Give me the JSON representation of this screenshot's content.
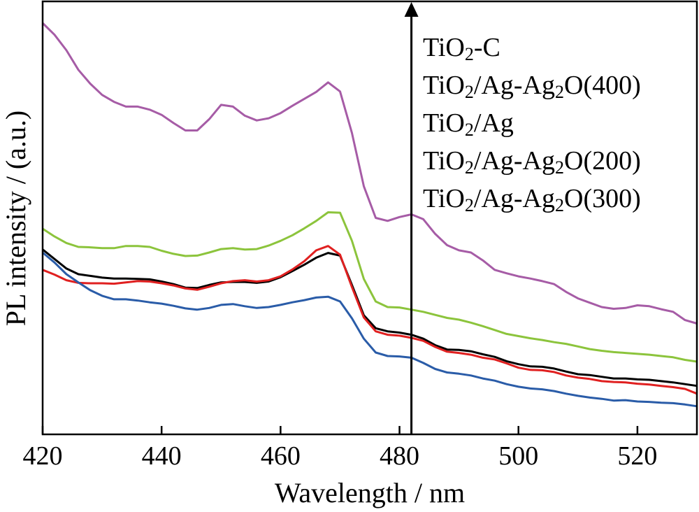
{
  "chart_data": {
    "type": "line",
    "xlabel": "Wavelength / nm",
    "ylabel": "PL intensity / (a.u.)",
    "xlim": [
      420,
      530
    ],
    "ylim": [
      0,
      100
    ],
    "x_ticks": [
      "420",
      "440",
      "460",
      "480",
      "500",
      "520"
    ],
    "y_ticks_shown": false,
    "grid": false,
    "arrow": {
      "x": 482,
      "direction": "up"
    },
    "legend_position": "top-right",
    "legend": [
      {
        "name": "TiO",
        "sub": "2",
        "rest": "-C"
      },
      {
        "name": "TiO",
        "sub": "2",
        "rest": "/Ag-Ag",
        "sub2": "2",
        "rest2": "O(400)"
      },
      {
        "name": "TiO",
        "sub": "2",
        "rest": "/Ag"
      },
      {
        "name": "TiO",
        "sub": "2",
        "rest": "/Ag-Ag",
        "sub2": "2",
        "rest2": "O(200)"
      },
      {
        "name": "TiO",
        "sub": "2",
        "rest": "/Ag-Ag",
        "sub2": "2",
        "rest2": "O(300)"
      }
    ],
    "series": [
      {
        "color": "#a65ca6",
        "points": [
          [
            420,
            95
          ],
          [
            422,
            92.3
          ],
          [
            424,
            88.7
          ],
          [
            426,
            84.2
          ],
          [
            428,
            81.0
          ],
          [
            430,
            78.4
          ],
          [
            432,
            76.8
          ],
          [
            434,
            75.7
          ],
          [
            436,
            75.7
          ],
          [
            438,
            75.0
          ],
          [
            440,
            73.8
          ],
          [
            442,
            71.9
          ],
          [
            444,
            70.2
          ],
          [
            446,
            70.2
          ],
          [
            448,
            72.8
          ],
          [
            450,
            76.1
          ],
          [
            452,
            75.7
          ],
          [
            454,
            73.6
          ],
          [
            456,
            72.5
          ],
          [
            458,
            73.0
          ],
          [
            460,
            74.2
          ],
          [
            462,
            75.9
          ],
          [
            464,
            77.5
          ],
          [
            466,
            79.1
          ],
          [
            468,
            81.3
          ],
          [
            470,
            79.2
          ],
          [
            472,
            69.6
          ],
          [
            474,
            57.3
          ],
          [
            476,
            50.0
          ],
          [
            478,
            49.3
          ],
          [
            480,
            50.2
          ],
          [
            482,
            50.8
          ],
          [
            484,
            49.7
          ],
          [
            486,
            46.3
          ],
          [
            488,
            43.7
          ],
          [
            490,
            42.5
          ],
          [
            492,
            42.0
          ],
          [
            494,
            40.2
          ],
          [
            496,
            38.0
          ],
          [
            498,
            37.2
          ],
          [
            500,
            36.5
          ],
          [
            502,
            36.0
          ],
          [
            504,
            35.4
          ],
          [
            506,
            34.7
          ],
          [
            508,
            32.9
          ],
          [
            510,
            31.4
          ],
          [
            512,
            30.4
          ],
          [
            514,
            29.4
          ],
          [
            516,
            29.0
          ],
          [
            518,
            29.2
          ],
          [
            520,
            29.8
          ],
          [
            522,
            29.6
          ],
          [
            524,
            28.9
          ],
          [
            526,
            28.3
          ],
          [
            528,
            26.4
          ],
          [
            530,
            25.6
          ]
        ]
      },
      {
        "color": "#8cc43c",
        "points": [
          [
            420,
            47.5
          ],
          [
            422,
            45.7
          ],
          [
            424,
            44.2
          ],
          [
            426,
            43.3
          ],
          [
            428,
            43.2
          ],
          [
            430,
            43.0
          ],
          [
            432,
            43.0
          ],
          [
            434,
            43.5
          ],
          [
            436,
            43.5
          ],
          [
            438,
            43.3
          ],
          [
            440,
            42.4
          ],
          [
            442,
            41.7
          ],
          [
            444,
            41.2
          ],
          [
            446,
            41.3
          ],
          [
            448,
            42.0
          ],
          [
            450,
            42.8
          ],
          [
            452,
            43.0
          ],
          [
            454,
            42.7
          ],
          [
            456,
            42.8
          ],
          [
            458,
            43.6
          ],
          [
            460,
            44.7
          ],
          [
            462,
            46.0
          ],
          [
            464,
            47.6
          ],
          [
            466,
            49.3
          ],
          [
            468,
            51.3
          ],
          [
            470,
            51.2
          ],
          [
            472,
            44.7
          ],
          [
            474,
            35.9
          ],
          [
            476,
            30.7
          ],
          [
            478,
            29.4
          ],
          [
            480,
            29.3
          ],
          [
            482,
            28.8
          ],
          [
            484,
            28.3
          ],
          [
            486,
            27.6
          ],
          [
            488,
            26.9
          ],
          [
            490,
            26.5
          ],
          [
            492,
            25.8
          ],
          [
            494,
            25.0
          ],
          [
            496,
            24.1
          ],
          [
            498,
            23.2
          ],
          [
            500,
            22.7
          ],
          [
            502,
            22.2
          ],
          [
            504,
            21.8
          ],
          [
            506,
            21.3
          ],
          [
            508,
            20.9
          ],
          [
            510,
            20.3
          ],
          [
            512,
            19.7
          ],
          [
            514,
            19.3
          ],
          [
            516,
            19.0
          ],
          [
            518,
            18.8
          ],
          [
            520,
            18.6
          ],
          [
            522,
            18.4
          ],
          [
            524,
            18.1
          ],
          [
            526,
            17.8
          ],
          [
            528,
            17.2
          ],
          [
            530,
            16.8
          ]
        ]
      },
      {
        "color": "#000000",
        "points": [
          [
            420,
            42.7
          ],
          [
            422,
            40.5
          ],
          [
            424,
            38.3
          ],
          [
            426,
            37.0
          ],
          [
            428,
            36.6
          ],
          [
            430,
            36.2
          ],
          [
            432,
            36.0
          ],
          [
            434,
            36.0
          ],
          [
            436,
            35.9
          ],
          [
            438,
            35.8
          ],
          [
            440,
            35.3
          ],
          [
            442,
            34.7
          ],
          [
            444,
            33.9
          ],
          [
            446,
            33.8
          ],
          [
            448,
            34.5
          ],
          [
            450,
            35.1
          ],
          [
            452,
            35.2
          ],
          [
            454,
            35.2
          ],
          [
            456,
            35.0
          ],
          [
            458,
            35.3
          ],
          [
            460,
            36.3
          ],
          [
            462,
            37.7
          ],
          [
            464,
            39.2
          ],
          [
            466,
            40.8
          ],
          [
            468,
            41.9
          ],
          [
            470,
            41.3
          ],
          [
            472,
            34.5
          ],
          [
            474,
            27.5
          ],
          [
            476,
            24.5
          ],
          [
            478,
            23.8
          ],
          [
            480,
            23.5
          ],
          [
            482,
            23.0
          ],
          [
            484,
            22.1
          ],
          [
            486,
            20.6
          ],
          [
            488,
            19.6
          ],
          [
            490,
            19.5
          ],
          [
            492,
            19.2
          ],
          [
            494,
            18.5
          ],
          [
            496,
            17.9
          ],
          [
            498,
            16.9
          ],
          [
            500,
            16.2
          ],
          [
            502,
            15.7
          ],
          [
            504,
            15.6
          ],
          [
            506,
            15.2
          ],
          [
            508,
            14.5
          ],
          [
            510,
            13.9
          ],
          [
            512,
            13.7
          ],
          [
            514,
            13.3
          ],
          [
            516,
            12.9
          ],
          [
            518,
            12.9
          ],
          [
            520,
            12.7
          ],
          [
            522,
            12.6
          ],
          [
            524,
            12.3
          ],
          [
            526,
            12.0
          ],
          [
            528,
            11.6
          ],
          [
            530,
            11.2
          ]
        ]
      },
      {
        "color": "#e02020",
        "points": [
          [
            420,
            38.0
          ],
          [
            422,
            36.9
          ],
          [
            424,
            35.6
          ],
          [
            426,
            35.0
          ],
          [
            428,
            34.9
          ],
          [
            430,
            34.9
          ],
          [
            432,
            34.8
          ],
          [
            434,
            35.1
          ],
          [
            436,
            35.4
          ],
          [
            438,
            35.3
          ],
          [
            440,
            34.9
          ],
          [
            442,
            34.4
          ],
          [
            444,
            33.7
          ],
          [
            446,
            33.4
          ],
          [
            448,
            34.1
          ],
          [
            450,
            34.9
          ],
          [
            452,
            35.4
          ],
          [
            454,
            35.6
          ],
          [
            456,
            35.3
          ],
          [
            458,
            35.6
          ],
          [
            460,
            36.5
          ],
          [
            462,
            38.1
          ],
          [
            464,
            40.0
          ],
          [
            466,
            42.5
          ],
          [
            468,
            43.5
          ],
          [
            470,
            41.5
          ],
          [
            472,
            34.0
          ],
          [
            474,
            27.0
          ],
          [
            476,
            23.8
          ],
          [
            478,
            23.0
          ],
          [
            480,
            22.8
          ],
          [
            482,
            22.3
          ],
          [
            484,
            21.6
          ],
          [
            486,
            20.2
          ],
          [
            488,
            19.1
          ],
          [
            490,
            18.8
          ],
          [
            492,
            18.4
          ],
          [
            494,
            17.7
          ],
          [
            496,
            17.3
          ],
          [
            498,
            16.4
          ],
          [
            500,
            15.4
          ],
          [
            502,
            14.9
          ],
          [
            504,
            14.8
          ],
          [
            506,
            14.4
          ],
          [
            508,
            13.6
          ],
          [
            510,
            13.1
          ],
          [
            512,
            12.8
          ],
          [
            514,
            12.3
          ],
          [
            516,
            12.1
          ],
          [
            518,
            12.0
          ],
          [
            520,
            11.7
          ],
          [
            522,
            11.5
          ],
          [
            524,
            11.2
          ],
          [
            526,
            10.9
          ],
          [
            528,
            10.5
          ],
          [
            530,
            9.4
          ]
        ]
      },
      {
        "color": "#2a5ca8",
        "points": [
          [
            420,
            42.0
          ],
          [
            422,
            39.7
          ],
          [
            424,
            37.0
          ],
          [
            426,
            35.1
          ],
          [
            428,
            33.3
          ],
          [
            430,
            32.0
          ],
          [
            432,
            31.2
          ],
          [
            434,
            31.2
          ],
          [
            436,
            30.9
          ],
          [
            438,
            30.5
          ],
          [
            440,
            30.2
          ],
          [
            442,
            29.7
          ],
          [
            444,
            29.1
          ],
          [
            446,
            28.8
          ],
          [
            448,
            29.2
          ],
          [
            450,
            29.9
          ],
          [
            452,
            30.1
          ],
          [
            454,
            29.6
          ],
          [
            456,
            29.2
          ],
          [
            458,
            29.4
          ],
          [
            460,
            29.9
          ],
          [
            462,
            30.5
          ],
          [
            464,
            31.0
          ],
          [
            466,
            31.6
          ],
          [
            468,
            31.8
          ],
          [
            470,
            30.7
          ],
          [
            472,
            26.8
          ],
          [
            474,
            22.1
          ],
          [
            476,
            18.9
          ],
          [
            478,
            18.1
          ],
          [
            480,
            18.0
          ],
          [
            482,
            17.7
          ],
          [
            484,
            16.5
          ],
          [
            486,
            15.1
          ],
          [
            488,
            14.3
          ],
          [
            490,
            14.0
          ],
          [
            492,
            13.6
          ],
          [
            494,
            12.9
          ],
          [
            496,
            12.4
          ],
          [
            498,
            11.6
          ],
          [
            500,
            11.0
          ],
          [
            502,
            10.6
          ],
          [
            504,
            10.4
          ],
          [
            506,
            10.0
          ],
          [
            508,
            9.4
          ],
          [
            510,
            8.9
          ],
          [
            512,
            8.5
          ],
          [
            514,
            8.2
          ],
          [
            516,
            7.8
          ],
          [
            518,
            7.9
          ],
          [
            520,
            7.6
          ],
          [
            522,
            7.5
          ],
          [
            524,
            7.3
          ],
          [
            526,
            7.2
          ],
          [
            528,
            6.9
          ],
          [
            530,
            6.5
          ]
        ]
      }
    ]
  }
}
